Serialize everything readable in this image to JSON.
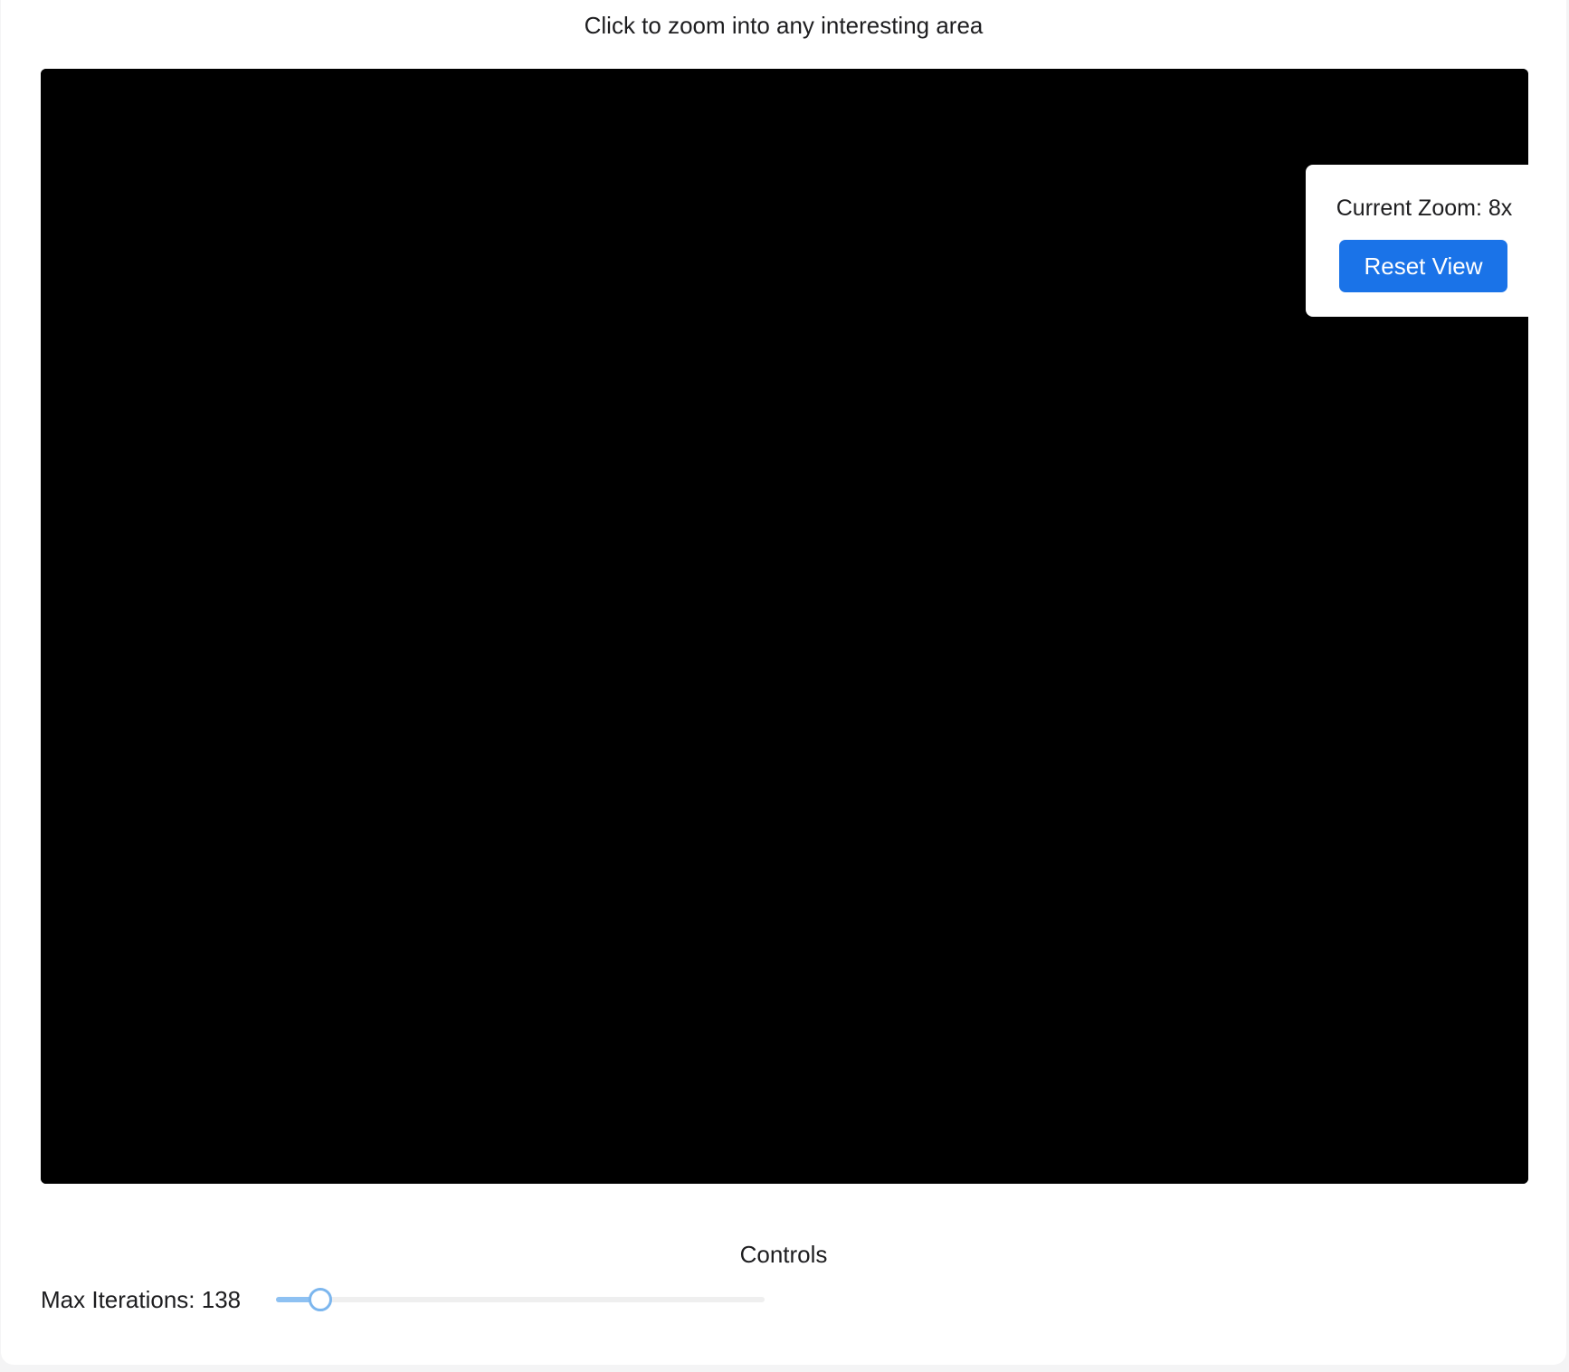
{
  "header": {
    "instruction": "Click to zoom into any interesting area"
  },
  "viewer": {
    "zoom_label": "Current Zoom: 8x",
    "reset_label": "Reset View",
    "zoom": 8
  },
  "controls": {
    "title": "Controls",
    "iterations_label": "Max Iterations: 138",
    "iterations_value": 138,
    "iterations_fraction": 0.09
  },
  "colors": {
    "button": "#1a73e8",
    "set_interior": "#000000",
    "far_field": "#d9d9fa",
    "near_field": "#2020ff",
    "boundary_hot": "#ff2000"
  }
}
